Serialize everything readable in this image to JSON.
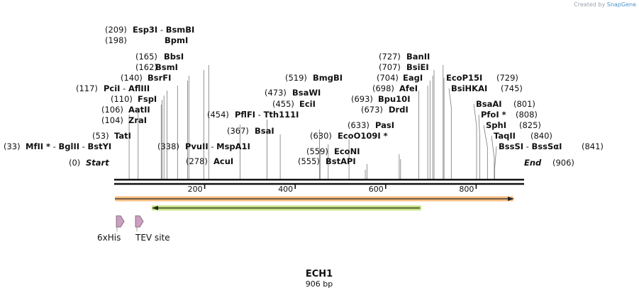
{
  "credit": {
    "prefix": "Created by",
    "brand": "SnapGene"
  },
  "plasmid": {
    "name": "ECH1",
    "length_label": "906 bp",
    "length": 906
  },
  "ends": {
    "start_label": "Start",
    "start_pos": "(0)",
    "end_label": "End",
    "end_pos": "(906)"
  },
  "ticks": [
    {
      "pos": 200,
      "label": "200"
    },
    {
      "pos": 400,
      "label": "400"
    },
    {
      "pos": 600,
      "label": "600"
    },
    {
      "pos": 800,
      "label": "800"
    }
  ],
  "sites": [
    {
      "pos": "(209)",
      "bp": 209,
      "parts": [
        "Esp3I",
        " - ",
        "BsmBI"
      ]
    },
    {
      "pos": "(198)",
      "bp": 198,
      "parts": [
        "BpmI"
      ]
    },
    {
      "pos": "(165)",
      "bp": 165,
      "parts": [
        "BbsI"
      ]
    },
    {
      "pos": "(162)",
      "bp": 162,
      "parts": [
        "BsmI"
      ]
    },
    {
      "pos": "(140)",
      "bp": 140,
      "parts": [
        "BsrFI"
      ]
    },
    {
      "pos": "(117)",
      "bp": 117,
      "parts": [
        "PciI",
        " - ",
        "AflIII"
      ]
    },
    {
      "pos": "(110)",
      "bp": 110,
      "parts": [
        "FspI"
      ]
    },
    {
      "pos": "(106)",
      "bp": 106,
      "parts": [
        "AatII"
      ]
    },
    {
      "pos": "(104)",
      "bp": 104,
      "parts": [
        "ZraI"
      ]
    },
    {
      "pos": "(53)",
      "bp": 53,
      "parts": [
        "TatI"
      ]
    },
    {
      "pos": "(33)",
      "bp": 33,
      "parts": [
        "MfII *",
        " - ",
        "BglII",
        " - ",
        "BstYI"
      ]
    },
    {
      "pos": "(338)",
      "bp": 338,
      "parts": [
        "PvuII",
        " - ",
        "MspA1I"
      ]
    },
    {
      "pos": "(278)",
      "bp": 278,
      "parts": [
        "AcuI"
      ]
    },
    {
      "pos": "(454)",
      "bp": 454,
      "parts": [
        "PflFI",
        " - ",
        "Tth111I"
      ]
    },
    {
      "pos": "(367)",
      "bp": 367,
      "parts": [
        "BsaI"
      ]
    },
    {
      "pos": "(519)",
      "bp": 519,
      "parts": [
        "BmgBI"
      ]
    },
    {
      "pos": "(473)",
      "bp": 473,
      "parts": [
        "BsaWI"
      ]
    },
    {
      "pos": "(455)",
      "bp": 455,
      "parts": [
        "EciI"
      ]
    },
    {
      "pos": "(630)",
      "bp": 630,
      "parts": [
        "EcoO109I *"
      ]
    },
    {
      "pos": "(633)",
      "bp": 633,
      "parts": [
        "PasI"
      ]
    },
    {
      "pos": "(559)",
      "bp": 559,
      "parts": [
        "EcoNI"
      ]
    },
    {
      "pos": "(555)",
      "bp": 555,
      "parts": [
        "BstAPI"
      ]
    },
    {
      "pos": "(727)",
      "bp": 727,
      "parts": [
        "BanII"
      ]
    },
    {
      "pos": "(707)",
      "bp": 707,
      "parts": [
        "BsiEI"
      ]
    },
    {
      "pos": "(704)",
      "bp": 704,
      "parts": [
        "EagI"
      ]
    },
    {
      "pos": "(698)",
      "bp": 698,
      "parts": [
        "AfeI"
      ]
    },
    {
      "pos": "(693)",
      "bp": 693,
      "parts": [
        "Bpu10I"
      ]
    },
    {
      "pos": "(673)",
      "bp": 673,
      "parts": [
        "DrdI"
      ]
    },
    {
      "pos": "(729)",
      "bp": 729,
      "parts": [
        "EcoP15I"
      ]
    },
    {
      "pos": "(745)",
      "bp": 745,
      "parts": [
        "BsiHKAI"
      ]
    },
    {
      "pos": "(801)",
      "bp": 801,
      "parts": [
        "BsaAI"
      ]
    },
    {
      "pos": "(808)",
      "bp": 808,
      "parts": [
        "PfoI *"
      ]
    },
    {
      "pos": "(825)",
      "bp": 825,
      "parts": [
        "SphI"
      ]
    },
    {
      "pos": "(840)",
      "bp": 840,
      "parts": [
        "TaqII"
      ]
    },
    {
      "pos": "(841)",
      "bp": 841,
      "parts": [
        "BssSI",
        " - ",
        "BssSαI"
      ]
    }
  ],
  "features": [
    {
      "name": "6xHis",
      "color": "#c9a0bf"
    },
    {
      "name": "TEV site",
      "color": "#c9a0bf"
    }
  ],
  "colors": {
    "backbone": "#111111",
    "orange_bar": "#f7be82",
    "green_bar": "#c4e07f",
    "arrow": "#222222"
  }
}
